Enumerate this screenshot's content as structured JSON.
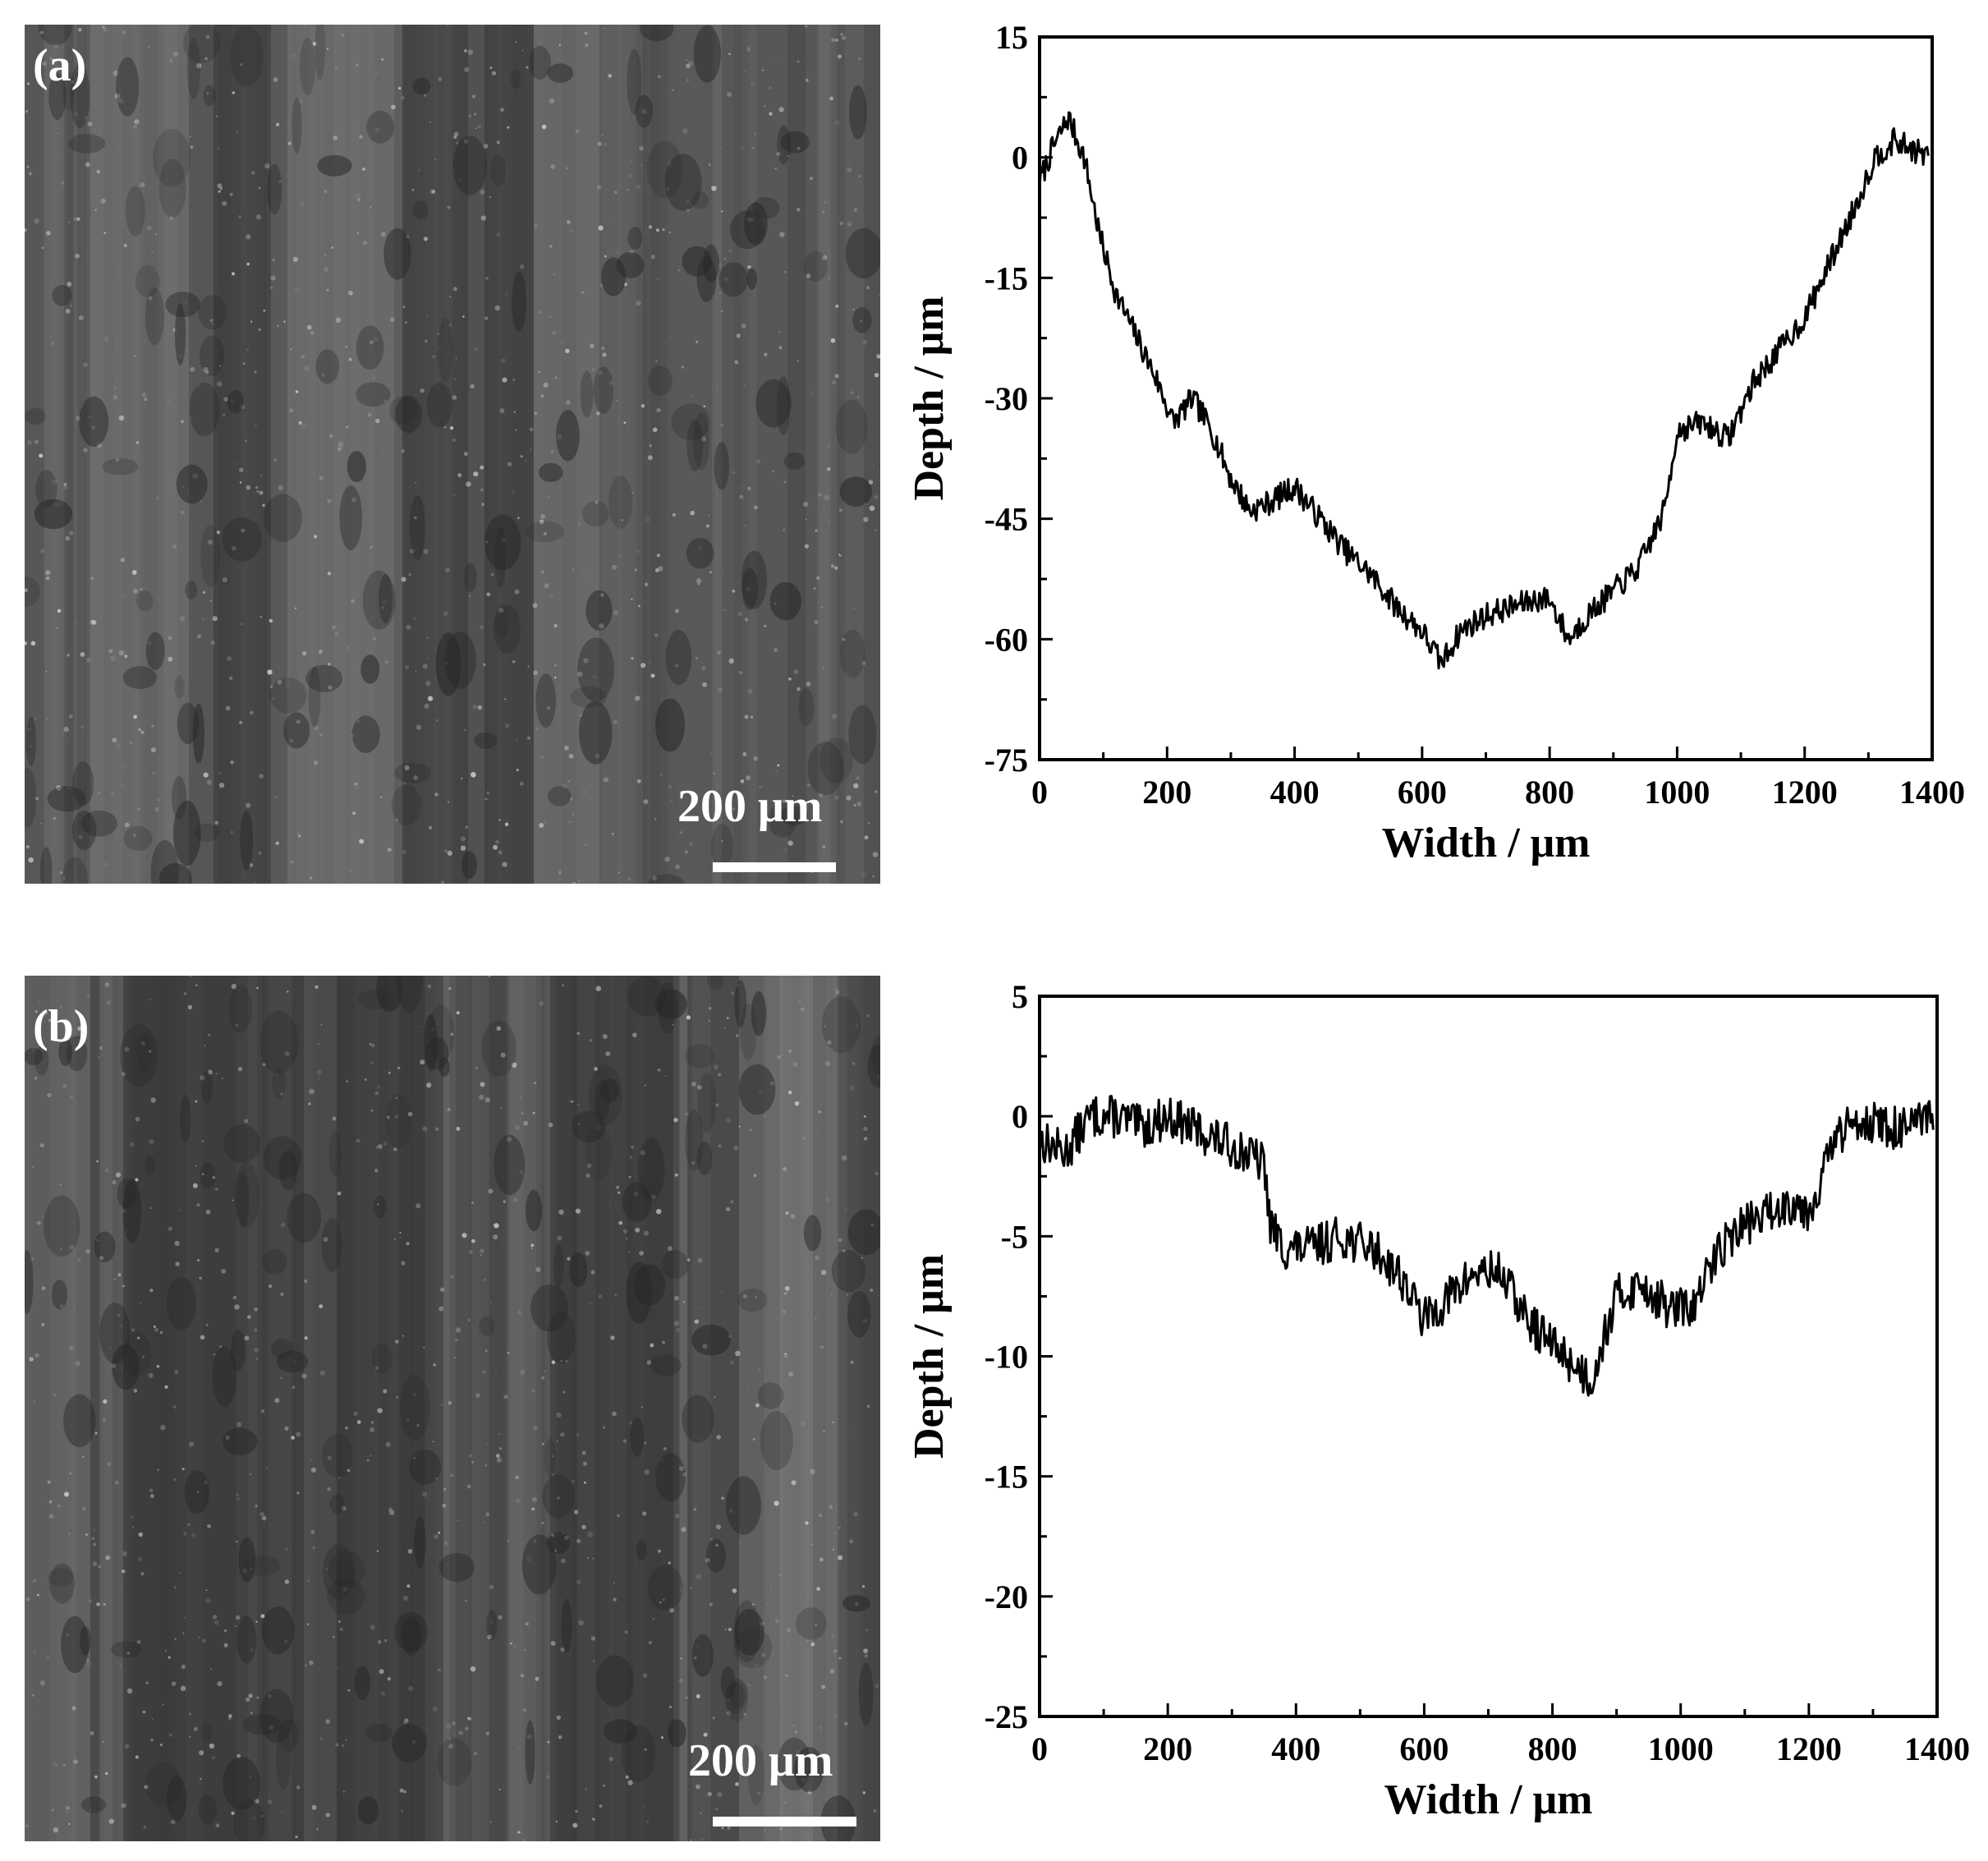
{
  "figure": {
    "panels": [
      {
        "label": "(a)",
        "scale_bar_text": "200 μm"
      },
      {
        "label": "(b)",
        "scale_bar_text": "200 μm"
      }
    ]
  },
  "colors": {
    "micrograph_a_base": "#575757",
    "micrograph_b_base": "#4a4a4a",
    "line": "#000000"
  },
  "chart_data": [
    {
      "type": "line",
      "title": "",
      "xlabel": "Width / μm",
      "ylabel": "Depth / μm",
      "xlim": [
        0,
        1400
      ],
      "ylim": [
        -75,
        15
      ],
      "xticks": [
        0,
        200,
        400,
        600,
        800,
        1000,
        1200,
        1400
      ],
      "yticks": [
        15,
        0,
        -15,
        -30,
        -45,
        -60,
        -75
      ],
      "grid": false,
      "series": [
        {
          "x": [
            0,
            20,
            45,
            70,
            95,
            120,
            150,
            180,
            210,
            240,
            270,
            300,
            330,
            360,
            400,
            440,
            480,
            520,
            560,
            600,
            630,
            660,
            700,
            740,
            780,
            800,
            830,
            860,
            900,
            940,
            980,
            1000,
            1040,
            1080,
            1120,
            1160,
            1200,
            1240,
            1280,
            1310,
            1340,
            1370,
            1395
          ],
          "y": [
            -3,
            1,
            5,
            0,
            -10,
            -17,
            -22,
            -27,
            -33,
            -30,
            -34,
            -40,
            -44,
            -43,
            -41,
            -45,
            -49,
            -52,
            -56,
            -59,
            -63,
            -59,
            -57,
            -56,
            -55,
            -55,
            -60,
            -57,
            -54,
            -51,
            -44,
            -34,
            -33,
            -35,
            -28,
            -24,
            -20,
            -13,
            -6,
            0,
            2,
            1,
            0
          ]
        }
      ]
    },
    {
      "type": "line",
      "title": "",
      "xlabel": "Width / μm",
      "ylabel": "Depth / μm",
      "xlim": [
        0,
        1400
      ],
      "ylim": [
        -25,
        5
      ],
      "xticks": [
        0,
        200,
        400,
        600,
        800,
        1000,
        1200,
        1400
      ],
      "yticks": [
        5,
        0,
        -5,
        -10,
        -15,
        -20,
        -25
      ],
      "grid": false,
      "series": [
        {
          "x": [
            0,
            40,
            80,
            120,
            160,
            200,
            240,
            280,
            320,
            350,
            360,
            380,
            420,
            470,
            520,
            560,
            600,
            640,
            680,
            720,
            760,
            800,
            840,
            860,
            900,
            940,
            980,
            1020,
            1060,
            1100,
            1140,
            1180,
            1200,
            1240,
            1280,
            1320,
            1360,
            1395
          ],
          "y": [
            -1,
            -1.5,
            0,
            0,
            -0.5,
            0,
            -0.5,
            -1,
            -1.5,
            -2,
            -4.5,
            -5.5,
            -5.5,
            -5,
            -5.5,
            -6.5,
            -8.5,
            -7.5,
            -6.5,
            -6.5,
            -8.5,
            -9.5,
            -10.5,
            -11,
            -7.5,
            -7,
            -8,
            -8,
            -5.5,
            -4.5,
            -4,
            -3.5,
            -4,
            -1,
            0,
            -0.5,
            -0.5,
            0
          ]
        }
      ]
    }
  ]
}
